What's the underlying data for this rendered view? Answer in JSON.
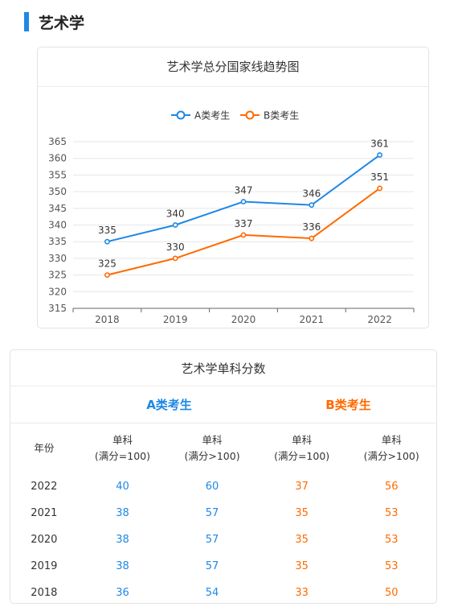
{
  "section": {
    "title": "艺术学"
  },
  "chart_card": {
    "title": "艺术学总分国家线趋势图"
  },
  "chart_data": {
    "type": "line",
    "title": "艺术学总分国家线趋势图",
    "categories": [
      "2018",
      "2019",
      "2020",
      "2021",
      "2022"
    ],
    "series": [
      {
        "name": "A类考生",
        "values": [
          335,
          340,
          347,
          346,
          361
        ],
        "color": "#1e88e5"
      },
      {
        "name": "B类考生",
        "values": [
          325,
          330,
          337,
          336,
          351
        ],
        "color": "#ff6a00"
      }
    ],
    "ylim": [
      315,
      365
    ],
    "yticks": [
      315,
      320,
      325,
      330,
      335,
      340,
      345,
      350,
      355,
      360,
      365
    ],
    "grid": true,
    "legend": "top-center"
  },
  "table": {
    "title": "艺术学单科分数",
    "group_a": "A类考生",
    "group_b": "B类考生",
    "headers": [
      {
        "l1": "年份",
        "l2": ""
      },
      {
        "l1": "单科",
        "l2": "(满分=100)"
      },
      {
        "l1": "单科",
        "l2": "(满分>100)"
      },
      {
        "l1": "单科",
        "l2": "(满分=100)"
      },
      {
        "l1": "单科",
        "l2": "(满分>100)"
      }
    ],
    "rows": [
      [
        "2022",
        "40",
        "60",
        "37",
        "56"
      ],
      [
        "2021",
        "38",
        "57",
        "35",
        "53"
      ],
      [
        "2020",
        "38",
        "57",
        "35",
        "53"
      ],
      [
        "2019",
        "38",
        "57",
        "35",
        "53"
      ],
      [
        "2018",
        "36",
        "54",
        "33",
        "50"
      ]
    ]
  }
}
